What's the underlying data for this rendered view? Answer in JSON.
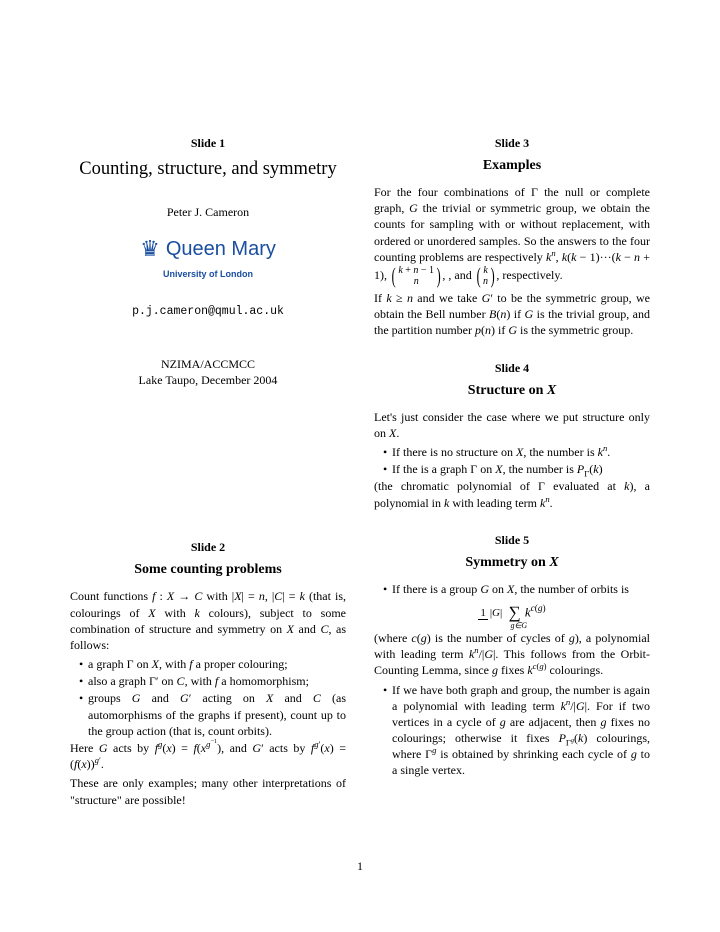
{
  "page_number": "1",
  "colors": {
    "brand": "#1a4ea0",
    "text": "#000000",
    "background": "#ffffff"
  },
  "left": {
    "slide1": {
      "label": "Slide 1",
      "title": "Counting, structure, and symmetry",
      "author": "Peter J. Cameron",
      "logo_text": "Queen Mary",
      "logo_sub": "University of London",
      "email": "p.j.cameron@qmul.ac.uk",
      "venue1": "NZIMA/ACCMCC",
      "venue2": "Lake Taupo, December 2004"
    },
    "slide2": {
      "label": "Slide 2",
      "title": "Some counting problems",
      "p1a": "Count functions ",
      "p1b": " (that is, colourings of ",
      "p1c": " colours), subject to some combination of structure and symmetry on ",
      "p1d": ", as follows:",
      "b1a": "a graph Γ on ",
      "b1b": " a proper colouring;",
      "b2a": "also a graph Γ′ on ",
      "b2b": " a homomorphism;",
      "b3a": "groups ",
      "b3b": " acting on ",
      "b3c": " (as automorphisms of the graphs if present), count up to the group action (that is, count orbits).",
      "p2a": "Here ",
      "p2b": " acts by",
      "p2c": ", and ",
      "p2d": " acts by ",
      "p3": "These are only examples; many other interpretations of \"structure\" are possible!"
    }
  },
  "right": {
    "slide3": {
      "label": "Slide 3",
      "title": "Examples",
      "p1": "For the four combinations of Γ the null or complete graph, ",
      "p1b": " the trivial or symmetric group, we obtain the counts for sampling with or without replacement, with ordered or unordered samples. So the answers to the four counting problems are respectively ",
      "p1c": ", and ",
      "p1d": ", respectively.",
      "p2a": "If ",
      "p2b": " and we take ",
      "p2c": " to be the symmetric group, we obtain the Bell number ",
      "p2d": " is the trivial group, and the partition number ",
      "p2e": " is the symmetric group."
    },
    "slide4": {
      "label": "Slide 4",
      "title": "Structure on ",
      "title_var": "X",
      "p1": "Let's just consider the case where we put structure only on ",
      "b1a": "If there is no structure on ",
      "b1b": ", the number is ",
      "b2a": "If the is a graph Γ on ",
      "b2b": ", the number is ",
      "p2a": "(the chromatic polynomial of Γ evaluated at ",
      "p2b": "), a polynomial in ",
      "p2c": " with leading term "
    },
    "slide5": {
      "label": "Slide 5",
      "title": "Symmetry on ",
      "title_var": "X",
      "b1a": "If there is a group ",
      "b1b": ", the number of orbits is",
      "p1a": "(where ",
      "p1b": " is the number of cycles of ",
      "p1c": "), a polynomial with leading term ",
      "p1d": ". This follows from the Orbit-Counting Lemma, since ",
      "p1e": " fixes ",
      "p1f": " colourings.",
      "b2a": "If we have both graph and group, the number is again a polynomial with leading term ",
      "b2b": ". For if two vertices in a cycle of ",
      "b2c": " are adjacent, then ",
      "b2d": " fixes no colourings; otherwise it fixes ",
      "b2e": " colourings, where Γ",
      "b2f": " is obtained by shrinking each cycle of ",
      "b2g": " to a single vertex."
    }
  }
}
